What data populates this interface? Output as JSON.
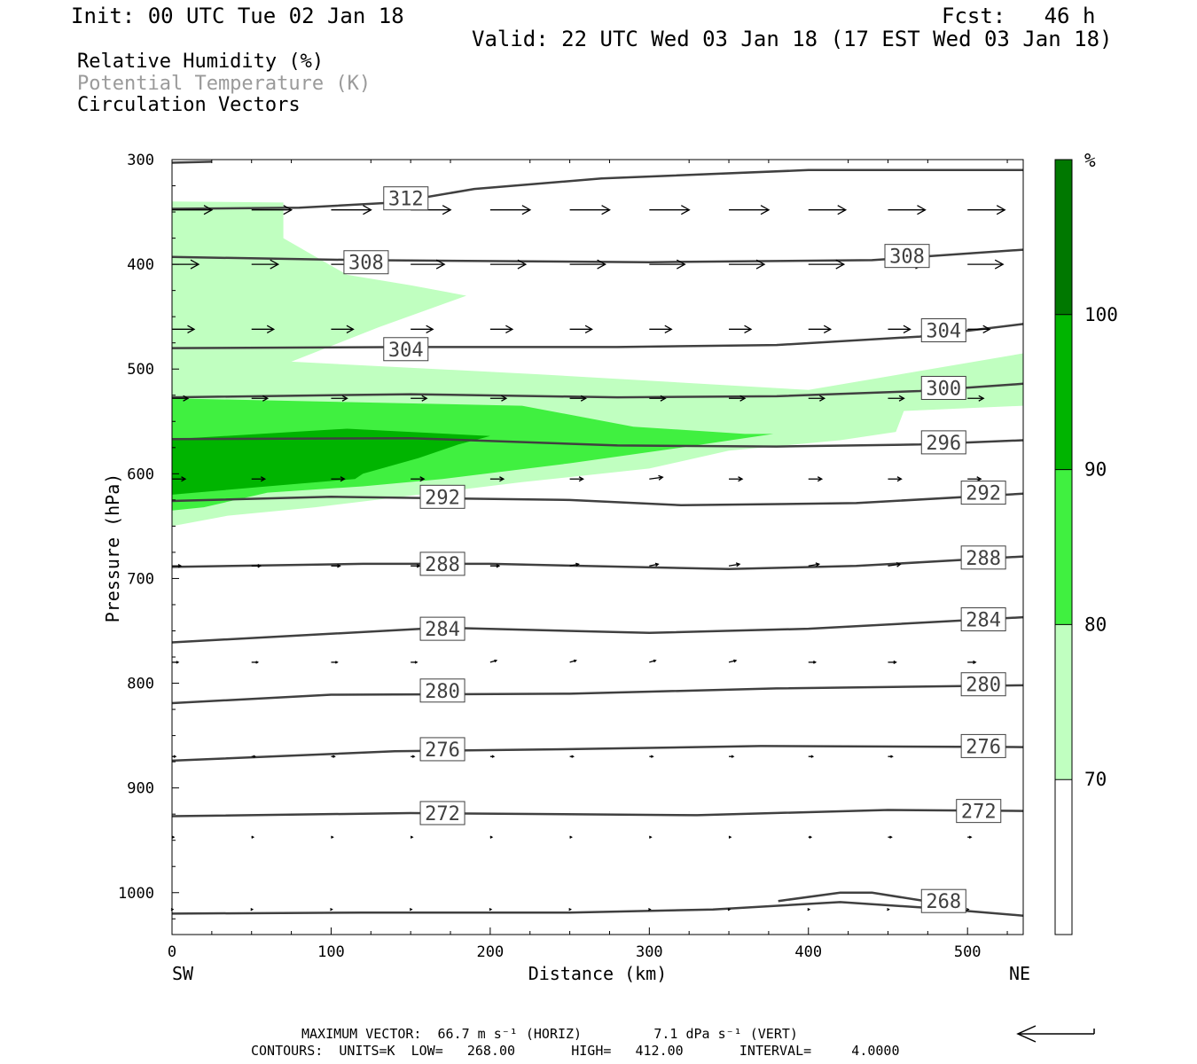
{
  "header": {
    "init": "Init: 00 UTC Tue 02 Jan 18",
    "fcst": "Fcst:   46 h",
    "valid": "Valid: 22 UTC Wed 03 Jan 18 (17 EST Wed 03 Jan 18)"
  },
  "legend": {
    "rh": "Relative Humidity (%)",
    "theta": "Potential Temperature (K)",
    "vectors": "Circulation Vectors"
  },
  "footer": {
    "max_vector": "MAXIMUM VECTOR:  66.7 m s⁻¹ (HORIZ)         7.1 dPa s⁻¹ (VERT)",
    "contours": "CONTOURS:  UNITS=K  LOW=   268.00       HIGH=   412.00       INTERVAL=     4.0000"
  },
  "colors": {
    "rh_70": "#c0ffc0",
    "rh_80": "#40f040",
    "rh_90": "#00b400",
    "rh_100": "#007800",
    "theta_line": "#404040"
  },
  "chart_data": {
    "type": "cross-section",
    "xlabel": "Distance (km)",
    "ylabel": "Pressure (hPa)",
    "xlim": [
      0,
      535
    ],
    "ylim": [
      300,
      1040
    ],
    "x_ticks": [
      0,
      100,
      200,
      300,
      400,
      500
    ],
    "y_ticks": [
      300,
      400,
      500,
      600,
      700,
      800,
      900,
      1000
    ],
    "x_end_labels": [
      "SW",
      "NE"
    ],
    "colorbar": {
      "unit": "%",
      "levels": [
        70,
        80,
        90,
        100
      ],
      "colors": [
        "#ffffff",
        "#c0ffc0",
        "#40f040",
        "#00b400",
        "#007800"
      ]
    },
    "rh_regions": [
      {
        "level": 70,
        "points": [
          [
            0,
            340
          ],
          [
            70,
            341
          ],
          [
            70,
            375
          ],
          [
            110,
            410
          ],
          [
            150,
            420
          ],
          [
            185,
            430
          ],
          [
            130,
            460
          ],
          [
            75,
            493
          ],
          [
            230,
            505
          ],
          [
            400,
            520
          ],
          [
            535,
            485
          ],
          [
            535,
            535
          ],
          [
            460,
            540
          ],
          [
            455,
            560
          ],
          [
            420,
            568
          ],
          [
            350,
            578
          ],
          [
            300,
            595
          ],
          [
            220,
            608
          ],
          [
            90,
            632
          ],
          [
            35,
            640
          ],
          [
            0,
            650
          ]
        ]
      },
      {
        "level": 80,
        "points": [
          [
            0,
            528
          ],
          [
            220,
            535
          ],
          [
            290,
            555
          ],
          [
            360,
            562
          ],
          [
            378,
            562
          ],
          [
            320,
            575
          ],
          [
            250,
            590
          ],
          [
            170,
            605
          ],
          [
            120,
            612
          ],
          [
            60,
            618
          ],
          [
            20,
            632
          ],
          [
            0,
            635
          ]
        ]
      },
      {
        "level": 90,
        "points": [
          [
            0,
            567
          ],
          [
            110,
            557
          ],
          [
            200,
            564
          ],
          [
            180,
            572
          ],
          [
            155,
            585
          ],
          [
            120,
            600
          ],
          [
            115,
            605
          ],
          [
            60,
            612
          ],
          [
            0,
            620
          ]
        ]
      }
    ],
    "theta_contours": [
      {
        "label": "312",
        "points": [
          [
            0,
            303
          ],
          [
            25,
            302
          ]
        ],
        "label_at": null
      },
      {
        "label": "312",
        "points": [
          [
            535,
            310
          ],
          [
            400,
            310
          ],
          [
            270,
            318
          ],
          [
            190,
            328
          ],
          [
            140,
            341
          ],
          [
            80,
            346
          ],
          [
            0,
            347
          ]
        ],
        "label_at": [
          147,
          337
        ]
      },
      {
        "label": "308",
        "points": [
          [
            0,
            393
          ],
          [
            120,
            396
          ],
          [
            300,
            398
          ],
          [
            440,
            396
          ],
          [
            535,
            386
          ]
        ],
        "label_at": [
          122,
          398
        ]
      },
      {
        "label": "308",
        "points": [],
        "label_at": [
          462,
          392
        ]
      },
      {
        "label": "304",
        "points": [
          [
            0,
            480
          ],
          [
            150,
            479
          ],
          [
            280,
            479
          ],
          [
            380,
            477
          ],
          [
            470,
            469
          ],
          [
            535,
            457
          ]
        ],
        "label_at": [
          147,
          481
        ]
      },
      {
        "label": "304",
        "points": [],
        "label_at": [
          485,
          463
        ]
      },
      {
        "label": "300",
        "points": [
          [
            0,
            527
          ],
          [
            150,
            524
          ],
          [
            280,
            527
          ],
          [
            380,
            526
          ],
          [
            470,
            521
          ],
          [
            535,
            514
          ]
        ],
        "label_at": [
          485,
          518
        ]
      },
      {
        "label": "296",
        "points": [
          [
            0,
            567
          ],
          [
            150,
            566
          ],
          [
            280,
            573
          ],
          [
            380,
            574
          ],
          [
            470,
            572
          ],
          [
            535,
            568
          ]
        ],
        "label_at": [
          485,
          570
        ]
      },
      {
        "label": "292",
        "points": [
          [
            0,
            626
          ],
          [
            100,
            622
          ],
          [
            250,
            625
          ],
          [
            320,
            630
          ],
          [
            430,
            628
          ],
          [
            535,
            619
          ]
        ],
        "label_at": [
          170,
          622
        ]
      },
      {
        "label": "292",
        "points": [],
        "label_at": [
          510,
          618
        ]
      },
      {
        "label": "288",
        "points": [
          [
            0,
            689
          ],
          [
            120,
            686
          ],
          [
            200,
            686
          ],
          [
            350,
            691
          ],
          [
            430,
            688
          ],
          [
            535,
            679
          ]
        ],
        "label_at": [
          170,
          686
        ]
      },
      {
        "label": "288",
        "points": [],
        "label_at": [
          510,
          680
        ]
      },
      {
        "label": "284",
        "points": [
          [
            0,
            761
          ],
          [
            170,
            747
          ],
          [
            300,
            752
          ],
          [
            400,
            748
          ],
          [
            535,
            737
          ]
        ],
        "label_at": [
          170,
          748
        ]
      },
      {
        "label": "284",
        "points": [],
        "label_at": [
          510,
          739
        ]
      },
      {
        "label": "280",
        "points": [
          [
            0,
            819
          ],
          [
            100,
            811
          ],
          [
            250,
            810
          ],
          [
            380,
            805
          ],
          [
            535,
            802
          ]
        ],
        "label_at": [
          170,
          807
        ]
      },
      {
        "label": "280",
        "points": [],
        "label_at": [
          510,
          801
        ]
      },
      {
        "label": "276",
        "points": [
          [
            0,
            874
          ],
          [
            140,
            865
          ],
          [
            250,
            863
          ],
          [
            370,
            860
          ],
          [
            535,
            861
          ]
        ],
        "label_at": [
          170,
          863
        ]
      },
      {
        "label": "276",
        "points": [],
        "label_at": [
          510,
          860
        ]
      },
      {
        "label": "272",
        "points": [
          [
            0,
            927
          ],
          [
            150,
            924
          ],
          [
            330,
            926
          ],
          [
            450,
            921
          ],
          [
            535,
            922
          ]
        ],
        "label_at": [
          170,
          924
        ]
      },
      {
        "label": "272",
        "points": [],
        "label_at": [
          507,
          922
        ]
      },
      {
        "label": "268",
        "points": [
          [
            0,
            1020
          ],
          [
            120,
            1019
          ],
          [
            250,
            1019
          ],
          [
            340,
            1016
          ],
          [
            420,
            1009
          ],
          [
            480,
            1015
          ],
          [
            535,
            1022
          ]
        ],
        "label_at": [
          485,
          1008
        ]
      },
      {
        "label": "268",
        "points": [
          [
            381,
            1008
          ],
          [
            420,
            1000
          ],
          [
            440,
            1000
          ],
          [
            490,
            1012
          ]
        ],
        "label_at": null
      }
    ],
    "vector_rows": [
      {
        "p": 348,
        "x": [
          0,
          50,
          100,
          150,
          200,
          250,
          300,
          350,
          400,
          450,
          500
        ],
        "dx": [
          45,
          45,
          45,
          45,
          45,
          45,
          45,
          45,
          42,
          42,
          42
        ],
        "dp": [
          0,
          0,
          0,
          0,
          0,
          0,
          0,
          0,
          0,
          0,
          0
        ]
      },
      {
        "p": 400,
        "x": [
          0,
          50,
          100,
          150,
          200,
          250,
          300,
          350,
          400,
          450,
          500
        ],
        "dx": [
          30,
          30,
          30,
          38,
          40,
          40,
          40,
          40,
          40,
          40,
          40
        ],
        "dp": [
          0,
          0,
          0,
          0,
          0,
          0,
          0,
          0,
          0,
          0,
          0
        ]
      },
      {
        "p": 462,
        "x": [
          0,
          50,
          100,
          150,
          200,
          250,
          300,
          350,
          400,
          450,
          500
        ],
        "dx": [
          25,
          25,
          25,
          25,
          25,
          25,
          25,
          25,
          25,
          25,
          25
        ],
        "dp": [
          0,
          0,
          0,
          0,
          0,
          0,
          0,
          0,
          0,
          0,
          0
        ]
      },
      {
        "p": 528,
        "x": [
          0,
          50,
          100,
          150,
          200,
          250,
          300,
          350,
          400,
          450,
          500
        ],
        "dx": [
          18,
          18,
          18,
          18,
          18,
          18,
          18,
          18,
          18,
          18,
          18
        ],
        "dp": [
          0,
          0,
          0,
          0,
          0,
          0,
          0,
          0,
          0,
          0,
          0
        ]
      },
      {
        "p": 605,
        "x": [
          0,
          50,
          100,
          150,
          200,
          250,
          300,
          350,
          400,
          450,
          500
        ],
        "dx": [
          15,
          15,
          15,
          15,
          15,
          15,
          15,
          15,
          15,
          15,
          15
        ],
        "dp": [
          0,
          0,
          0,
          0,
          0,
          0,
          -2,
          0,
          0,
          0,
          0
        ]
      },
      {
        "p": 688,
        "x": [
          0,
          50,
          100,
          150,
          200,
          250,
          300,
          350,
          400,
          450,
          500
        ],
        "dx": [
          10,
          10,
          10,
          10,
          10,
          10,
          10,
          12,
          12,
          14,
          14
        ],
        "dp": [
          0,
          0,
          0,
          0,
          0,
          -2,
          -2,
          -2,
          -2,
          -2,
          0
        ]
      },
      {
        "p": 780,
        "x": [
          0,
          50,
          100,
          150,
          200,
          250,
          300,
          350,
          400,
          450,
          500
        ],
        "dx": [
          7,
          7,
          7,
          7,
          7,
          7,
          7,
          8,
          8,
          9,
          9
        ],
        "dp": [
          0,
          0,
          0,
          0,
          -2,
          -2,
          -2,
          -2,
          0,
          0,
          0
        ]
      },
      {
        "p": 870,
        "x": [
          0,
          50,
          100,
          150,
          200,
          250,
          300,
          350,
          400,
          450,
          500
        ],
        "dx": [
          4,
          4,
          4,
          4,
          4,
          4,
          4,
          5,
          5,
          5,
          5
        ],
        "dp": [
          0,
          0,
          0,
          0,
          0,
          0,
          0,
          0,
          0,
          0,
          0
        ]
      },
      {
        "p": 947,
        "x": [
          0,
          50,
          100,
          150,
          200,
          250,
          300,
          350,
          400,
          450,
          500
        ],
        "dx": [
          2,
          2,
          2,
          2,
          2,
          2,
          2,
          2,
          3,
          4,
          4
        ],
        "dp": [
          0,
          0,
          0,
          0,
          0,
          0,
          0,
          0,
          0,
          0,
          0
        ]
      },
      {
        "p": 1016,
        "x": [
          0,
          50,
          100,
          150,
          200,
          250,
          300,
          350,
          400,
          450,
          500
        ],
        "dx": [
          1,
          1,
          1,
          1,
          1,
          1,
          1,
          1,
          1,
          1,
          1
        ],
        "dp": [
          0,
          0,
          0,
          0,
          0,
          0,
          0,
          0,
          0,
          0,
          0
        ]
      }
    ]
  }
}
